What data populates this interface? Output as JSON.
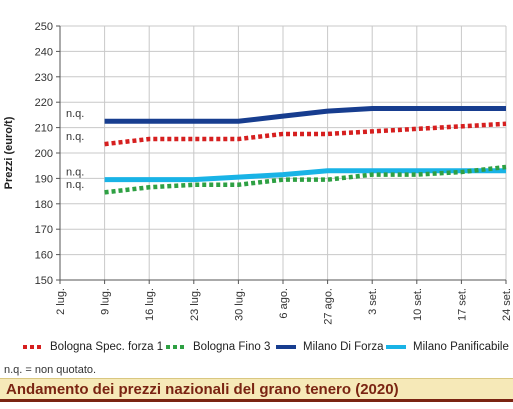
{
  "chart_data": {
    "type": "line",
    "ylabel": "Prezzi (euro/t)",
    "ylim": [
      150,
      250
    ],
    "yticks": [
      150,
      160,
      170,
      180,
      190,
      200,
      210,
      220,
      230,
      240,
      250
    ],
    "categories": [
      "2 lug.",
      "9 lug.",
      "16 lug.",
      "23 lug.",
      "30 lug.",
      "6 ago.",
      "27 ago.",
      "3 set.",
      "10 set.",
      "17 set.",
      "24 set."
    ],
    "grid": true,
    "legend_position": "bottom",
    "series": [
      {
        "name": "Bologna Spec. forza 1",
        "color": "#d61f1f",
        "style": "dotted",
        "values": [
          null,
          203.5,
          205.5,
          205.5,
          205.5,
          207.5,
          207.5,
          208.5,
          209.5,
          210.5,
          211.5
        ]
      },
      {
        "name": "Bologna Fino 3",
        "color": "#2ea043",
        "style": "dotted",
        "values": [
          null,
          184.5,
          186.5,
          187.5,
          187.5,
          189.5,
          189.5,
          191.5,
          191.5,
          192.5,
          194.5
        ]
      },
      {
        "name": "Milano Di Forza",
        "color": "#173d8f",
        "style": "solid",
        "values": [
          null,
          212.5,
          212.5,
          212.5,
          212.5,
          214.5,
          216.5,
          217.5,
          217.5,
          217.5,
          217.5
        ]
      },
      {
        "name": "Milano Panificabile",
        "color": "#19b3e6",
        "style": "solid",
        "values": [
          null,
          189.5,
          189.5,
          189.5,
          190.5,
          191.5,
          193.0,
          193.0,
          193.0,
          193.0,
          193.0
        ]
      }
    ],
    "annotations": [
      {
        "text": "n.q.",
        "y": 213
      },
      {
        "text": "n.q.",
        "y": 204
      },
      {
        "text": "n.q.",
        "y": 190
      },
      {
        "text": "n.q.",
        "y": 185
      }
    ]
  },
  "footnote": "n.q. = non quotato.",
  "title": "Andamento dei prezzi nazionali del grano tenero (2020)"
}
